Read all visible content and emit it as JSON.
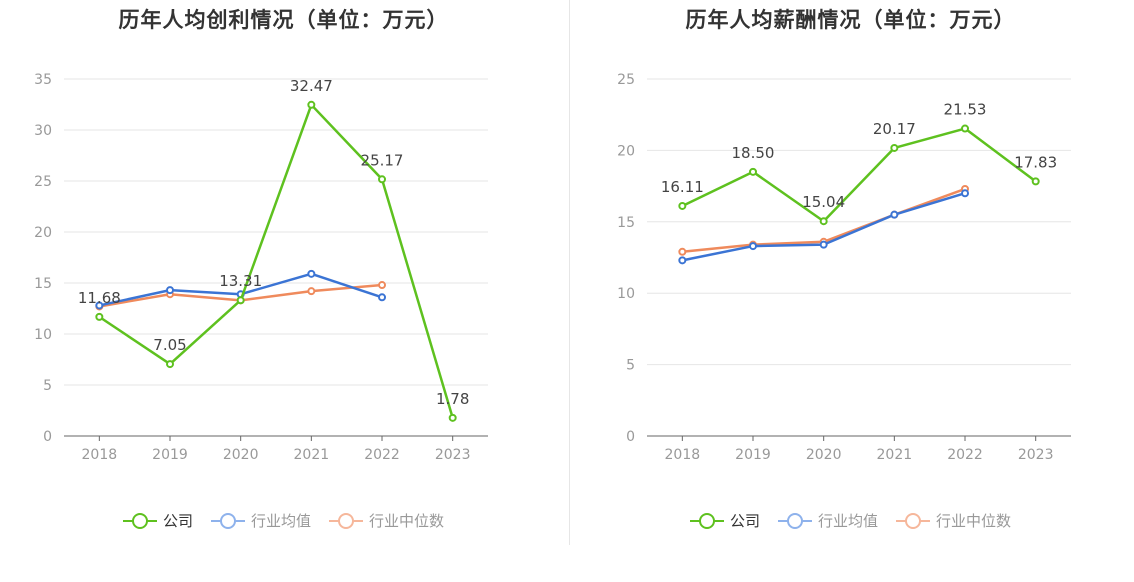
{
  "chart_data": [
    {
      "type": "line",
      "title": "历年人均创利情况（单位：万元）",
      "categories": [
        "2018",
        "2019",
        "2020",
        "2021",
        "2022",
        "2023"
      ],
      "ylim": [
        0,
        35
      ],
      "yticks": [
        0,
        5,
        10,
        15,
        20,
        25,
        30,
        35
      ],
      "series": [
        {
          "name": "公司",
          "color": "#5ec11f",
          "values": [
            11.68,
            7.05,
            13.31,
            32.47,
            25.17,
            1.78
          ],
          "labels": [
            "11.68",
            "7.05",
            "13.31",
            "32.47",
            "25.17",
            "1.78"
          ]
        },
        {
          "name": "行业均值",
          "color": "#3b74d4",
          "values": [
            12.8,
            14.3,
            13.9,
            15.9,
            13.6,
            null
          ]
        },
        {
          "name": "行业中位数",
          "color": "#ef8a5c",
          "values": [
            12.7,
            13.9,
            13.3,
            14.2,
            14.8,
            null
          ]
        }
      ]
    },
    {
      "type": "line",
      "title": "历年人均薪酬情况（单位：万元）",
      "categories": [
        "2018",
        "2019",
        "2020",
        "2021",
        "2022",
        "2023"
      ],
      "ylim": [
        0,
        25
      ],
      "yticks": [
        0,
        5,
        10,
        15,
        20,
        25
      ],
      "series": [
        {
          "name": "公司",
          "color": "#5ec11f",
          "values": [
            16.11,
            18.5,
            15.04,
            20.17,
            21.53,
            17.83
          ],
          "labels": [
            "16.11",
            "18.50",
            "15.04",
            "20.17",
            "21.53",
            "17.83"
          ]
        },
        {
          "name": "行业均值",
          "color": "#3b74d4",
          "values": [
            12.3,
            13.3,
            13.4,
            15.5,
            17.0,
            null
          ]
        },
        {
          "name": "行业中位数",
          "color": "#ef8a5c",
          "values": [
            12.9,
            13.4,
            13.6,
            15.5,
            17.3,
            null
          ]
        }
      ]
    }
  ],
  "legend": {
    "company": "公司",
    "industry_avg": "行业均值",
    "industry_median": "行业中位数",
    "colors": {
      "company": "#5ec11f",
      "industry_avg": "#8eb2ec",
      "industry_median": "#f6b79b"
    }
  }
}
